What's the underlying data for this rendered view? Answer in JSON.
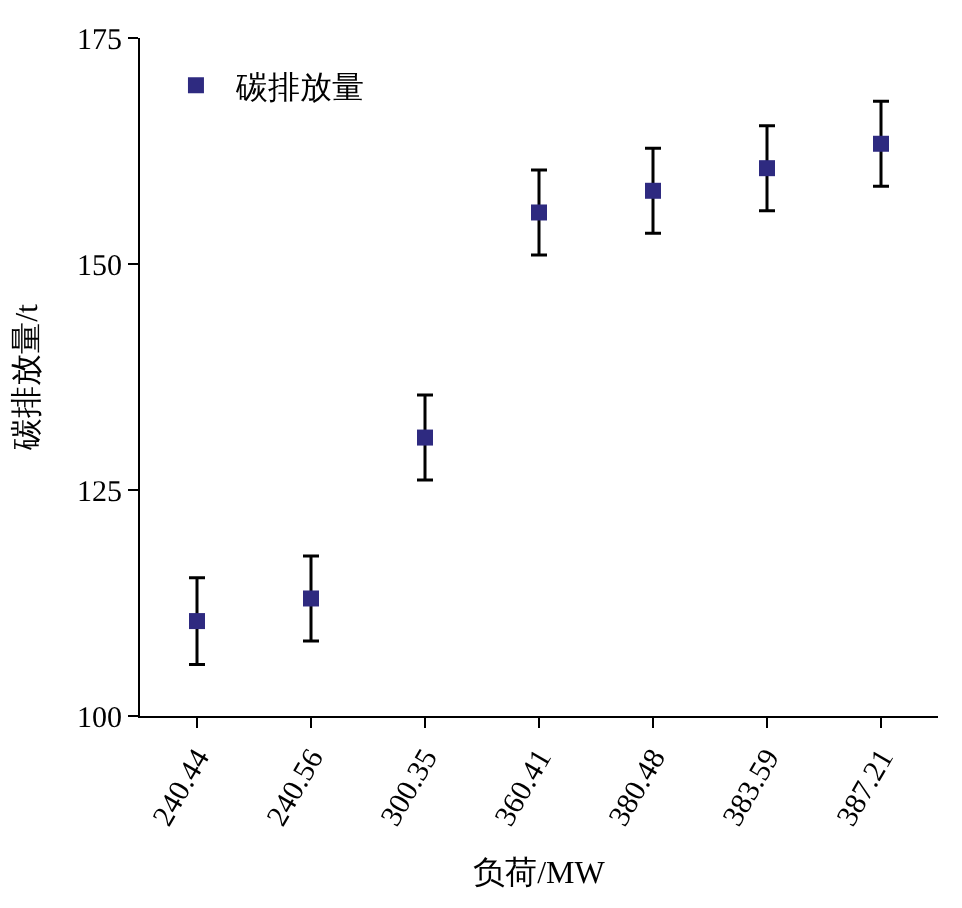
{
  "chart_data": {
    "type": "scatter",
    "xlabel": "负荷/MW",
    "ylabel": "碳排放量/t",
    "categories": [
      "240.44",
      "240.56",
      "300.35",
      "360.41",
      "380.48",
      "383.59",
      "387.21"
    ],
    "series": [
      {
        "name": "碳排放量",
        "color": "#2e2a80",
        "values": [
          110.5,
          113.0,
          130.8,
          155.7,
          158.1,
          160.6,
          163.3
        ],
        "errors": [
          4.8,
          4.7,
          4.7,
          4.7,
          4.7,
          4.7,
          4.7
        ]
      }
    ],
    "ylim": [
      100,
      175
    ],
    "yticks": [
      100,
      125,
      150,
      175
    ],
    "legend": "top left",
    "marker": "square"
  }
}
